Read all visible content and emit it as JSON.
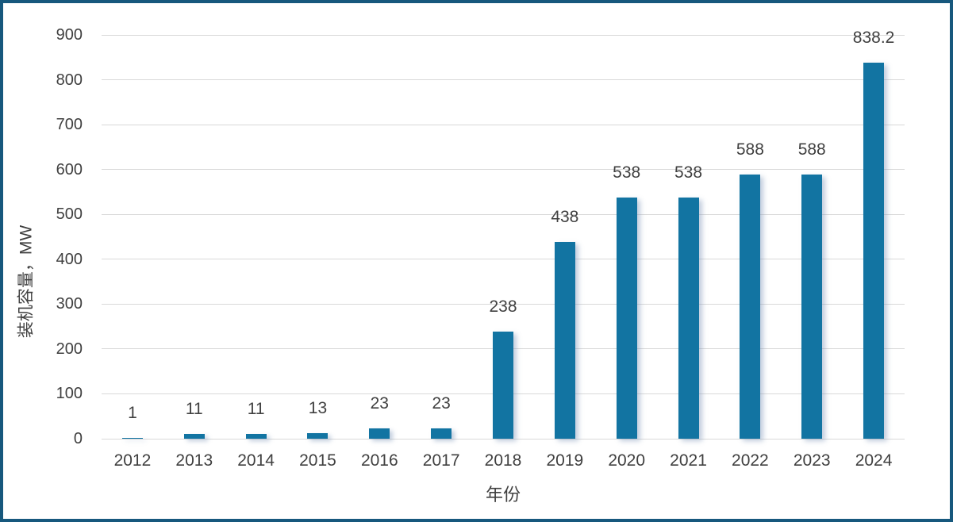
{
  "chart_data": {
    "type": "bar",
    "title": "",
    "xlabel": "年份",
    "ylabel": "装机容量，MW",
    "categories": [
      "2012",
      "2013",
      "2014",
      "2015",
      "2016",
      "2017",
      "2018",
      "2019",
      "2020",
      "2021",
      "2022",
      "2023",
      "2024"
    ],
    "values": [
      1,
      11,
      11,
      13,
      23,
      23,
      238,
      438,
      538,
      538,
      588,
      588,
      838.2
    ],
    "data_labels": [
      "1",
      "11",
      "11",
      "13",
      "23",
      "23",
      "238",
      "438",
      "538",
      "538",
      "588",
      "588",
      "838.2"
    ],
    "ylim": [
      0,
      900
    ],
    "yticks": [
      0,
      100,
      200,
      300,
      400,
      500,
      600,
      700,
      800,
      900
    ],
    "grid": true,
    "legend": false,
    "colors": {
      "bar": "#1274A2",
      "frame_border": "#17587D",
      "gridline": "#D9D9D9",
      "text": "#404040",
      "background": "#FFFFFF"
    }
  }
}
